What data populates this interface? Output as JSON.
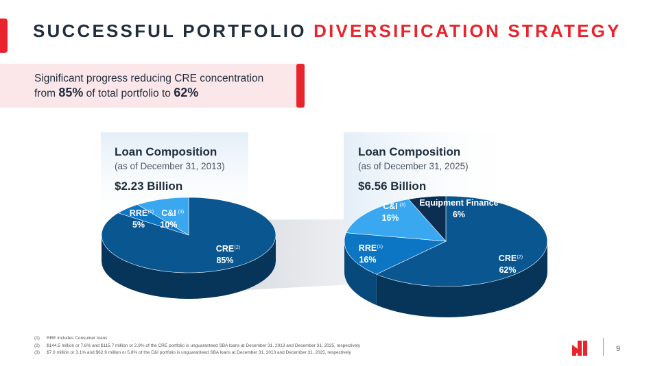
{
  "title": {
    "part1": "SUCCESSFUL PORTFOLIO",
    "part2": "DIVERSIFICATION STRATEGY"
  },
  "callout": {
    "line1": "Significant progress reducing CRE concentration",
    "from": "from",
    "value_from": "85%",
    "middle": "of total portfolio to",
    "value_to": "62%"
  },
  "colors": {
    "accent": "#e8242c",
    "cre": "#0a5690",
    "rre": "#0c75c4",
    "ci": "#3aa8f0",
    "equipment": "#0b2e52"
  },
  "chart_data": [
    {
      "type": "pie",
      "title": "Loan Composition",
      "subtitle": "(as of December 31, 2013)",
      "total": "$2.23 Billion",
      "slices": [
        {
          "name": "CRE",
          "footnote": "(2)",
          "value": 85,
          "label": "85%"
        },
        {
          "name": "RRE",
          "footnote": "(1)",
          "value": 5,
          "label": "5%"
        },
        {
          "name": "C&I",
          "footnote": "(3)",
          "value": 10,
          "label": "10%"
        }
      ]
    },
    {
      "type": "pie",
      "title": "Loan Composition",
      "subtitle": "(as of December 31, 2025)",
      "total": "$6.56 Billion",
      "slices": [
        {
          "name": "CRE",
          "footnote": "(2)",
          "value": 62,
          "label": "62%"
        },
        {
          "name": "RRE",
          "footnote": "(1)",
          "value": 16,
          "label": "16%"
        },
        {
          "name": "C&I",
          "footnote": "(3)",
          "value": 16,
          "label": "16%"
        },
        {
          "name": "Equipment Finance",
          "footnote": "",
          "value": 6,
          "label": "6%"
        }
      ]
    }
  ],
  "footnotes": [
    {
      "num": "(1)",
      "text": "RRE includes Consumer loans"
    },
    {
      "num": "(2)",
      "text": "$144.5 million or 7.6% and $115.7 million or 2.9% of the CRE portfolio is unguaranteed SBA loans at December 31, 2013 and December 31, 2025, respectively"
    },
    {
      "num": "(3)",
      "text": "$7.0 million or 3.1% and $62.9 million or 5.8% of the C&I portfolio is unguaranteed SBA loans at December 31, 2013 and December 31, 2025, respectively"
    }
  ],
  "page_number": "9",
  "logo_icon": "company-logo-icon"
}
